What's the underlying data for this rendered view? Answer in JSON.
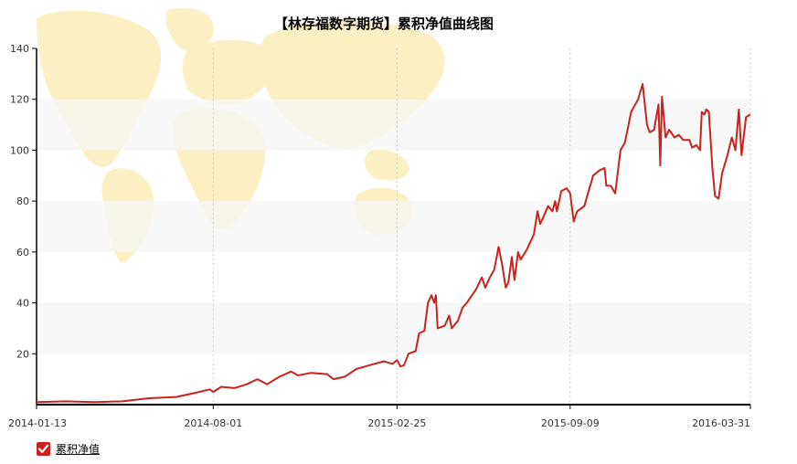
{
  "colors": {
    "line": "#c8231c",
    "band": "#f6f6f6",
    "map": "#fbefc4",
    "axis": "#000000",
    "grid": "#cccccc"
  },
  "legend": {
    "icon": "checkbox-checked-icon",
    "label": "累积净值"
  },
  "chart_data": {
    "type": "line",
    "title": "【林存福数字期货】累积净值曲线图",
    "xlabel": "",
    "ylabel": "",
    "ylim": [
      0,
      140
    ],
    "yticks": [
      20,
      40,
      60,
      80,
      100,
      120,
      140
    ],
    "xticks": [
      "2014-01-13",
      "2014-08-01",
      "2015-02-25",
      "2015-09-09",
      "2016-03-31"
    ],
    "grid": "vertical dashed at date ticks, alternating horizontal bands",
    "legend_position": "bottom-left",
    "series": [
      {
        "name": "累积净值",
        "points": [
          [
            "2014-01-13",
            1.0
          ],
          [
            "2014-02-15",
            1.3
          ],
          [
            "2014-03-20",
            1.0
          ],
          [
            "2014-04-20",
            1.3
          ],
          [
            "2014-05-20",
            2.5
          ],
          [
            "2014-06-20",
            3.0
          ],
          [
            "2014-07-10",
            4.5
          ],
          [
            "2014-07-28",
            6.0
          ],
          [
            "2014-08-01",
            5.0
          ],
          [
            "2014-08-10",
            7.0
          ],
          [
            "2014-08-25",
            6.5
          ],
          [
            "2014-09-08",
            8.0
          ],
          [
            "2014-09-20",
            10.0
          ],
          [
            "2014-10-01",
            8.0
          ],
          [
            "2014-10-15",
            11.0
          ],
          [
            "2014-10-28",
            13.0
          ],
          [
            "2014-11-05",
            11.5
          ],
          [
            "2014-11-20",
            12.5
          ],
          [
            "2014-12-08",
            12.0
          ],
          [
            "2014-12-15",
            10.0
          ],
          [
            "2014-12-28",
            11.0
          ],
          [
            "2015-01-10",
            14.0
          ],
          [
            "2015-01-25",
            15.5
          ],
          [
            "2015-02-10",
            17.0
          ],
          [
            "2015-02-20",
            16.0
          ],
          [
            "2015-02-25",
            17.5
          ],
          [
            "2015-03-01",
            15.0
          ],
          [
            "2015-03-05",
            15.5
          ],
          [
            "2015-03-10",
            20.0
          ],
          [
            "2015-03-18",
            21.0
          ],
          [
            "2015-03-22",
            28.0
          ],
          [
            "2015-03-28",
            29.0
          ],
          [
            "2015-04-01",
            40.0
          ],
          [
            "2015-04-05",
            43.0
          ],
          [
            "2015-04-08",
            40.0
          ],
          [
            "2015-04-10",
            43.0
          ],
          [
            "2015-04-12",
            30.0
          ],
          [
            "2015-04-20",
            31.0
          ],
          [
            "2015-04-25",
            35.0
          ],
          [
            "2015-04-28",
            30.0
          ],
          [
            "2015-05-05",
            33.0
          ],
          [
            "2015-05-10",
            38.0
          ],
          [
            "2015-05-15",
            40.0
          ],
          [
            "2015-05-25",
            45.0
          ],
          [
            "2015-06-01",
            50.0
          ],
          [
            "2015-06-05",
            46.0
          ],
          [
            "2015-06-10",
            50.0
          ],
          [
            "2015-06-15",
            53.0
          ],
          [
            "2015-06-20",
            62.0
          ],
          [
            "2015-06-24",
            55.0
          ],
          [
            "2015-06-28",
            46.0
          ],
          [
            "2015-07-01",
            48.0
          ],
          [
            "2015-07-05",
            58.0
          ],
          [
            "2015-07-08",
            49.0
          ],
          [
            "2015-07-12",
            60.0
          ],
          [
            "2015-07-15",
            57.0
          ],
          [
            "2015-07-22",
            61.0
          ],
          [
            "2015-07-30",
            67.0
          ],
          [
            "2015-08-03",
            76.0
          ],
          [
            "2015-08-06",
            71.0
          ],
          [
            "2015-08-10",
            74.0
          ],
          [
            "2015-08-15",
            78.0
          ],
          [
            "2015-08-20",
            76.0
          ],
          [
            "2015-08-23",
            80.0
          ],
          [
            "2015-08-25",
            76.0
          ],
          [
            "2015-08-30",
            84.0
          ],
          [
            "2015-09-05",
            85.0
          ],
          [
            "2015-09-09",
            83.0
          ],
          [
            "2015-09-13",
            72.0
          ],
          [
            "2015-09-17",
            76.0
          ],
          [
            "2015-09-25",
            78.0
          ],
          [
            "2015-10-05",
            90.0
          ],
          [
            "2015-10-12",
            92.0
          ],
          [
            "2015-10-18",
            93.0
          ],
          [
            "2015-10-20",
            86.0
          ],
          [
            "2015-10-25",
            86.0
          ],
          [
            "2015-10-30",
            83.0
          ],
          [
            "2015-11-05",
            100.0
          ],
          [
            "2015-11-10",
            103.0
          ],
          [
            "2015-11-13",
            108.0
          ],
          [
            "2015-11-17",
            115.0
          ],
          [
            "2015-11-25",
            120.0
          ],
          [
            "2015-11-30",
            126.0
          ],
          [
            "2015-12-05",
            110.0
          ],
          [
            "2015-12-08",
            107.0
          ],
          [
            "2015-12-13",
            108.0
          ],
          [
            "2015-12-18",
            118.0
          ],
          [
            "2015-12-20",
            94.0
          ],
          [
            "2015-12-22",
            121.0
          ],
          [
            "2015-12-26",
            105.0
          ],
          [
            "2015-12-30",
            108.0
          ],
          [
            "2016-01-05",
            105.0
          ],
          [
            "2016-01-10",
            106.0
          ],
          [
            "2016-01-15",
            104.0
          ],
          [
            "2016-01-22",
            104.0
          ],
          [
            "2016-01-25",
            101.0
          ],
          [
            "2016-01-30",
            102.0
          ],
          [
            "2016-02-03",
            100.0
          ],
          [
            "2016-02-05",
            115.0
          ],
          [
            "2016-02-08",
            114.0
          ],
          [
            "2016-02-10",
            116.0
          ],
          [
            "2016-02-13",
            115.0
          ],
          [
            "2016-02-17",
            93.0
          ],
          [
            "2016-02-20",
            82.0
          ],
          [
            "2016-02-24",
            81.0
          ],
          [
            "2016-02-28",
            91.0
          ],
          [
            "2016-03-05",
            98.0
          ],
          [
            "2016-03-10",
            105.0
          ],
          [
            "2016-03-14",
            100.0
          ],
          [
            "2016-03-18",
            116.0
          ],
          [
            "2016-03-21",
            98.0
          ],
          [
            "2016-03-26",
            113.0
          ],
          [
            "2016-03-31",
            114.0
          ]
        ]
      }
    ]
  }
}
